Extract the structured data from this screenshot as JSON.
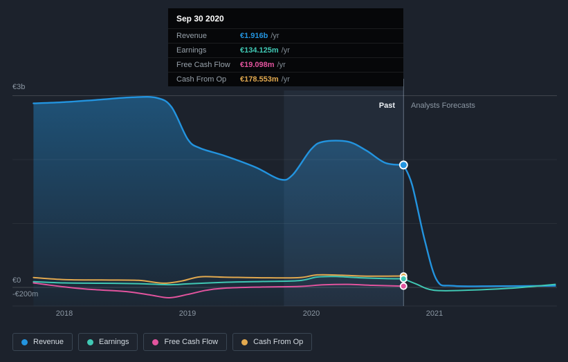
{
  "page": {
    "background": "#1c222c"
  },
  "tooltip": {
    "date": "Sep 30 2020",
    "rows": [
      {
        "label": "Revenue",
        "value": "€1.916b",
        "suffix": "/yr",
        "color": "#2394df"
      },
      {
        "label": "Earnings",
        "value": "€134.125m",
        "suffix": "/yr",
        "color": "#40c8b4"
      },
      {
        "label": "Free Cash Flow",
        "value": "€19.098m",
        "suffix": "/yr",
        "color": "#e2549e"
      },
      {
        "label": "Cash From Op",
        "value": "€178.553m",
        "suffix": "/yr",
        "color": "#e2a94f"
      }
    ]
  },
  "axis": {
    "y_top": "€3b",
    "y_zero": "€0",
    "y_neg": "-€200m",
    "x_ticks": [
      "2018",
      "2019",
      "2020",
      "2021"
    ]
  },
  "sections": {
    "past": "Past",
    "forecast": "Analysts Forecasts"
  },
  "legend": [
    {
      "label": "Revenue",
      "color": "#2394df"
    },
    {
      "label": "Earnings",
      "color": "#40c8b4"
    },
    {
      "label": "Free Cash Flow",
      "color": "#e2549e"
    },
    {
      "label": "Cash From Op",
      "color": "#e2a94f"
    }
  ],
  "chart_data": {
    "type": "line",
    "title": "Past performance and analysts forecasts (EUR)",
    "x_unit": "calendar year (fractional)",
    "x_range": [
      2017.58,
      2022.0
    ],
    "ylim_millions": [
      -300,
      3100
    ],
    "y_gridlines_m": [
      3000,
      2000,
      1000,
      0
    ],
    "x_ticks": [
      2018,
      2019,
      2020,
      2021
    ],
    "divider_year": 2020.75,
    "divider_date": "Sep 30 2020",
    "highlight_band": [
      2019.78,
      2020.75
    ],
    "legend_position": "bottom-left",
    "grid": true,
    "series": [
      {
        "name": "Revenue",
        "color": "#2394df",
        "area": true,
        "unit": "EUR millions",
        "past": [
          [
            2017.75,
            2880
          ],
          [
            2018.0,
            2900
          ],
          [
            2018.3,
            2940
          ],
          [
            2018.55,
            2975
          ],
          [
            2018.75,
            2965
          ],
          [
            2018.87,
            2820
          ],
          [
            2019.0,
            2320
          ],
          [
            2019.1,
            2180
          ],
          [
            2019.3,
            2060
          ],
          [
            2019.55,
            1880
          ],
          [
            2019.75,
            1690
          ],
          [
            2019.85,
            1760
          ],
          [
            2020.0,
            2160
          ],
          [
            2020.1,
            2280
          ],
          [
            2020.3,
            2280
          ],
          [
            2020.45,
            2140
          ],
          [
            2020.6,
            1950
          ],
          [
            2020.75,
            1916
          ]
        ],
        "forecast": [
          [
            2020.75,
            1916
          ],
          [
            2020.82,
            1600
          ],
          [
            2020.92,
            750
          ],
          [
            2021.02,
            110
          ],
          [
            2021.15,
            25
          ],
          [
            2021.5,
            20
          ],
          [
            2021.98,
            25
          ]
        ],
        "marker_value_m": 1916
      },
      {
        "name": "Cash From Op",
        "color": "#e2a94f",
        "area": false,
        "unit": "EUR millions",
        "past": [
          [
            2017.75,
            155
          ],
          [
            2018.0,
            122
          ],
          [
            2018.3,
            116
          ],
          [
            2018.6,
            110
          ],
          [
            2018.8,
            66
          ],
          [
            2018.95,
            100
          ],
          [
            2019.1,
            165
          ],
          [
            2019.3,
            160
          ],
          [
            2019.6,
            150
          ],
          [
            2019.9,
            152
          ],
          [
            2020.05,
            196
          ],
          [
            2020.25,
            190
          ],
          [
            2020.45,
            176
          ],
          [
            2020.75,
            178.553
          ]
        ],
        "forecast": [],
        "marker_value_m": 178.553
      },
      {
        "name": "Earnings",
        "color": "#40c8b4",
        "area": false,
        "unit": "EUR millions",
        "past": [
          [
            2017.75,
            90
          ],
          [
            2018.0,
            70
          ],
          [
            2018.3,
            65
          ],
          [
            2018.6,
            58
          ],
          [
            2018.85,
            42
          ],
          [
            2019.0,
            55
          ],
          [
            2019.3,
            80
          ],
          [
            2019.6,
            92
          ],
          [
            2019.9,
            105
          ],
          [
            2020.05,
            162
          ],
          [
            2020.2,
            170
          ],
          [
            2020.4,
            150
          ],
          [
            2020.6,
            138
          ],
          [
            2020.75,
            134.125
          ]
        ],
        "forecast": [
          [
            2020.75,
            134.125
          ],
          [
            2020.85,
            55
          ],
          [
            2021.0,
            -45
          ],
          [
            2021.3,
            -42
          ],
          [
            2021.6,
            -15
          ],
          [
            2021.85,
            25
          ],
          [
            2021.98,
            48
          ]
        ],
        "marker_value_m": 134.125
      },
      {
        "name": "Free Cash Flow",
        "color": "#e2549e",
        "area": false,
        "unit": "EUR millions",
        "past": [
          [
            2017.75,
            70
          ],
          [
            2018.0,
            8
          ],
          [
            2018.2,
            -30
          ],
          [
            2018.5,
            -65
          ],
          [
            2018.7,
            -120
          ],
          [
            2018.85,
            -162
          ],
          [
            2019.0,
            -110
          ],
          [
            2019.15,
            -45
          ],
          [
            2019.3,
            -12
          ],
          [
            2019.6,
            5
          ],
          [
            2019.9,
            15
          ],
          [
            2020.1,
            40
          ],
          [
            2020.3,
            48
          ],
          [
            2020.5,
            32
          ],
          [
            2020.75,
            19.098
          ]
        ],
        "forecast": [],
        "marker_value_m": 19.098
      }
    ]
  }
}
